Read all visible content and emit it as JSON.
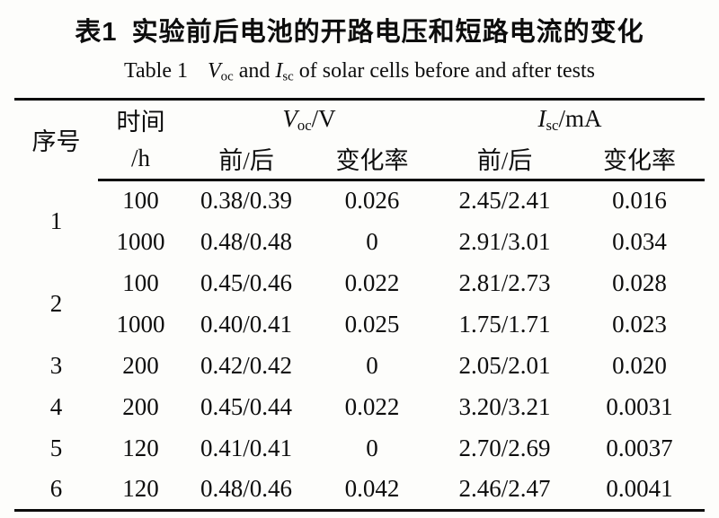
{
  "title": {
    "zh_label": "表1",
    "zh_text": "实验前后电池的开路电压和短路电流的变化",
    "en_label": "Table 1",
    "en_v_symbol": "V",
    "en_v_sub": "oc",
    "en_mid": "and",
    "en_i_symbol": "I",
    "en_i_sub": "sc",
    "en_suffix": "of solar cells before and after tests"
  },
  "table": {
    "headers": {
      "seq": "序号",
      "time_line1": "时间",
      "time_line2": "/h",
      "voc_symbol": "V",
      "voc_sub": "oc",
      "voc_unit": "/V",
      "isc_symbol": "I",
      "isc_sub": "sc",
      "isc_unit": "/mA",
      "before_after": "前/后",
      "change_rate": "变化率"
    },
    "rows": [
      {
        "seq": "1",
        "time": "100",
        "v_ba": "0.38/0.39",
        "v_rate": "0.026",
        "i_ba": "2.45/2.41",
        "i_rate": "0.016"
      },
      {
        "time": "1000",
        "v_ba": "0.48/0.48",
        "v_rate": "0",
        "i_ba": "2.91/3.01",
        "i_rate": "0.034"
      },
      {
        "seq": "2",
        "time": "100",
        "v_ba": "0.45/0.46",
        "v_rate": "0.022",
        "i_ba": "2.81/2.73",
        "i_rate": "0.028"
      },
      {
        "time": "1000",
        "v_ba": "0.40/0.41",
        "v_rate": "0.025",
        "i_ba": "1.75/1.71",
        "i_rate": "0.023"
      },
      {
        "seq": "3",
        "time": "200",
        "v_ba": "0.42/0.42",
        "v_rate": "0",
        "i_ba": "2.05/2.01",
        "i_rate": "0.020"
      },
      {
        "seq": "4",
        "time": "200",
        "v_ba": "0.45/0.44",
        "v_rate": "0.022",
        "i_ba": "3.20/3.21",
        "i_rate": "0.0031"
      },
      {
        "seq": "5",
        "time": "120",
        "v_ba": "0.41/0.41",
        "v_rate": "0",
        "i_ba": "2.70/2.69",
        "i_rate": "0.0037"
      },
      {
        "seq": "6",
        "time": "120",
        "v_ba": "0.48/0.46",
        "v_rate": "0.042",
        "i_ba": "2.46/2.47",
        "i_rate": "0.0041"
      }
    ]
  }
}
